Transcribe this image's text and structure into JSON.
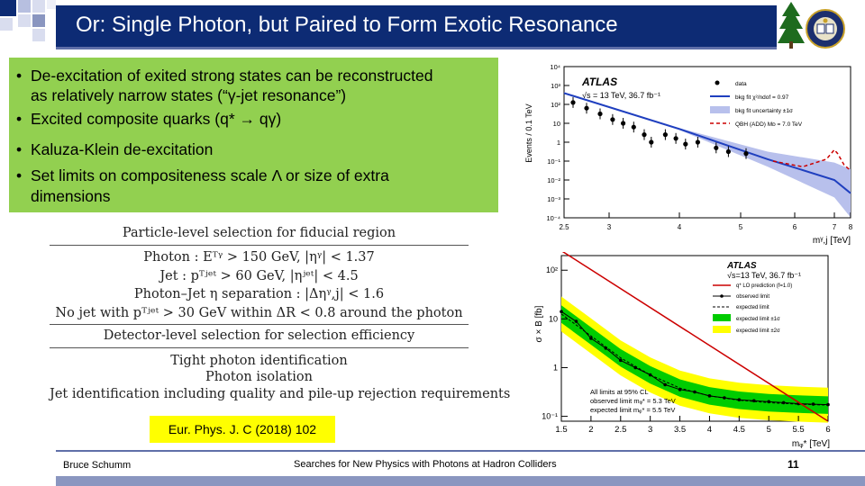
{
  "slide": {
    "title": "Or: Single Photon, but Paired to Form Exotic Resonance",
    "bullets": [
      "De-excitation of exited strong states can be reconstructed",
      "as relatively narrow states (“γ-jet resonance”)",
      "Excited composite quarks (q* → qγ)",
      "Kaluza-Klein de-excitation",
      "Set limits on compositeness scale Λ or size of extra",
      "dimensions"
    ],
    "bullet_char": "•",
    "selection_table": {
      "header1": "Particle-level selection for fiducial region",
      "photon": "Photon : Eᵀᵞ > 150 GeV, |ηᵞ| < 1.37",
      "jet": "Jet : pᵀʲᵉᵗ > 60 GeV, |ηʲᵉᵗ| < 4.5",
      "separation": "Photon–Jet η separation : |Δηᵞ,j| < 1.6",
      "nojet": "No jet with pᵀʲᵉᵗ > 30 GeV within ΔR < 0.8 around the photon",
      "header2": "Detector-level selection for selection efficiency",
      "tight": "Tight photon identification",
      "isolation": "Photon isolation",
      "jetid": "Jet identification including quality and pile-up rejection requirements"
    },
    "reference": "Eur. Phys. J. C (2018) 102",
    "footer": {
      "author": "Bruce Schumm",
      "center": "Searches for New Physics with Photons at Hadron Colliders",
      "page": "11"
    },
    "colors": {
      "title_bg": "#0d2b74",
      "bullet_bg": "#92d050",
      "ref_bg": "#ffff00",
      "fit_line": "#1f3fbf",
      "qbh_line": "#cc0000",
      "band_1sigma": "#00cc00",
      "band_2sigma": "#ffff00"
    }
  },
  "chart_data": [
    {
      "type": "scatter",
      "experiment": "ATLAS",
      "energy_label": "√s = 13 TeV, 36.7 fb⁻¹",
      "ylabel": "Events / 0.1 TeV",
      "xlabel": "mᵞ,j [TeV]",
      "x_ticks": [
        "2.5",
        "3",
        "4",
        "5",
        "6",
        "7",
        "8"
      ],
      "y_ticks": [
        "10⁴",
        "10³",
        "10²",
        "10",
        "1",
        "10⁻¹",
        "10⁻²",
        "10⁻³",
        "10⁻⁴"
      ],
      "legend": [
        "data",
        "bkg fit χ²/ndof = 0.97",
        "bkg fit uncertainty ±1σ",
        "QBH (ADD) Mᴅ = 7.0 TeV"
      ],
      "xlim": [
        2.5,
        8
      ],
      "ylim_log10": [
        -4,
        4
      ],
      "data_points": [
        {
          "x": 2.6,
          "y_log10": 2.1
        },
        {
          "x": 2.75,
          "y_log10": 1.8
        },
        {
          "x": 2.9,
          "y_log10": 1.5
        },
        {
          "x": 3.05,
          "y_log10": 1.2
        },
        {
          "x": 3.2,
          "y_log10": 1.0
        },
        {
          "x": 3.35,
          "y_log10": 0.8
        },
        {
          "x": 3.5,
          "y_log10": 0.4
        },
        {
          "x": 3.6,
          "y_log10": 0.0
        },
        {
          "x": 3.8,
          "y_log10": 0.4
        },
        {
          "x": 3.95,
          "y_log10": 0.2
        },
        {
          "x": 4.1,
          "y_log10": -0.1
        },
        {
          "x": 4.3,
          "y_log10": 0.0
        },
        {
          "x": 4.6,
          "y_log10": -0.3
        },
        {
          "x": 4.8,
          "y_log10": -0.5
        },
        {
          "x": 5.1,
          "y_log10": -0.6
        }
      ],
      "bkg_fit_log10": [
        {
          "x": 2.5,
          "y": 2.6
        },
        {
          "x": 4.0,
          "y": 0.7
        },
        {
          "x": 5.5,
          "y": -0.9
        },
        {
          "x": 7.0,
          "y": -2.0
        },
        {
          "x": 8.0,
          "y": -2.7
        }
      ]
    },
    {
      "type": "line",
      "experiment": "ATLAS",
      "energy_label": "√s=13 TeV, 36.7 fb⁻¹",
      "ylabel": "σ × B [fb]",
      "xlabel": "mᵩ* [TeV]",
      "x_ticks": [
        "1.5",
        "2",
        "2.5",
        "3",
        "3.5",
        "4",
        "4.5",
        "5",
        "5.5",
        "6"
      ],
      "y_ticks": [
        "10²",
        "10",
        "1",
        "10⁻¹"
      ],
      "xlim": [
        1.5,
        6
      ],
      "ylim_log10": [
        -1.1,
        2.3
      ],
      "legend": [
        "q* LO prediction (f=1.0)",
        "observed limit",
        "expected limit",
        "expected limit ±1σ",
        "expected limit ±2σ"
      ],
      "annotation": [
        "All limits at 95% CL",
        "observed limit mᵩ* = 5.3 TeV",
        "expected limit mᵩ* = 5.5 TeV"
      ],
      "observed_log10": [
        {
          "x": 1.5,
          "y": 1.15
        },
        {
          "x": 1.75,
          "y": 0.95
        },
        {
          "x": 2.0,
          "y": 0.6
        },
        {
          "x": 2.25,
          "y": 0.4
        },
        {
          "x": 2.5,
          "y": 0.15
        },
        {
          "x": 2.75,
          "y": 0.0
        },
        {
          "x": 3.0,
          "y": -0.15
        },
        {
          "x": 3.25,
          "y": -0.35
        },
        {
          "x": 3.5,
          "y": -0.45
        },
        {
          "x": 3.75,
          "y": -0.5
        },
        {
          "x": 4.0,
          "y": -0.58
        },
        {
          "x": 4.25,
          "y": -0.62
        },
        {
          "x": 4.5,
          "y": -0.66
        },
        {
          "x": 4.75,
          "y": -0.68
        },
        {
          "x": 5.0,
          "y": -0.7
        },
        {
          "x": 5.25,
          "y": -0.72
        },
        {
          "x": 5.5,
          "y": -0.74
        },
        {
          "x": 5.75,
          "y": -0.75
        },
        {
          "x": 6.0,
          "y": -0.76
        }
      ],
      "expected_log10": [
        {
          "x": 1.5,
          "y": 1.1
        },
        {
          "x": 2.0,
          "y": 0.65
        },
        {
          "x": 2.5,
          "y": 0.2
        },
        {
          "x": 3.0,
          "y": -0.15
        },
        {
          "x": 3.5,
          "y": -0.42
        },
        {
          "x": 4.0,
          "y": -0.58
        },
        {
          "x": 4.5,
          "y": -0.67
        },
        {
          "x": 5.0,
          "y": -0.72
        },
        {
          "x": 5.5,
          "y": -0.75
        },
        {
          "x": 6.0,
          "y": -0.77
        }
      ],
      "prediction_log10": [
        {
          "x": 1.5,
          "y": 2.4
        },
        {
          "x": 6.0,
          "y": -1.1
        }
      ]
    }
  ]
}
